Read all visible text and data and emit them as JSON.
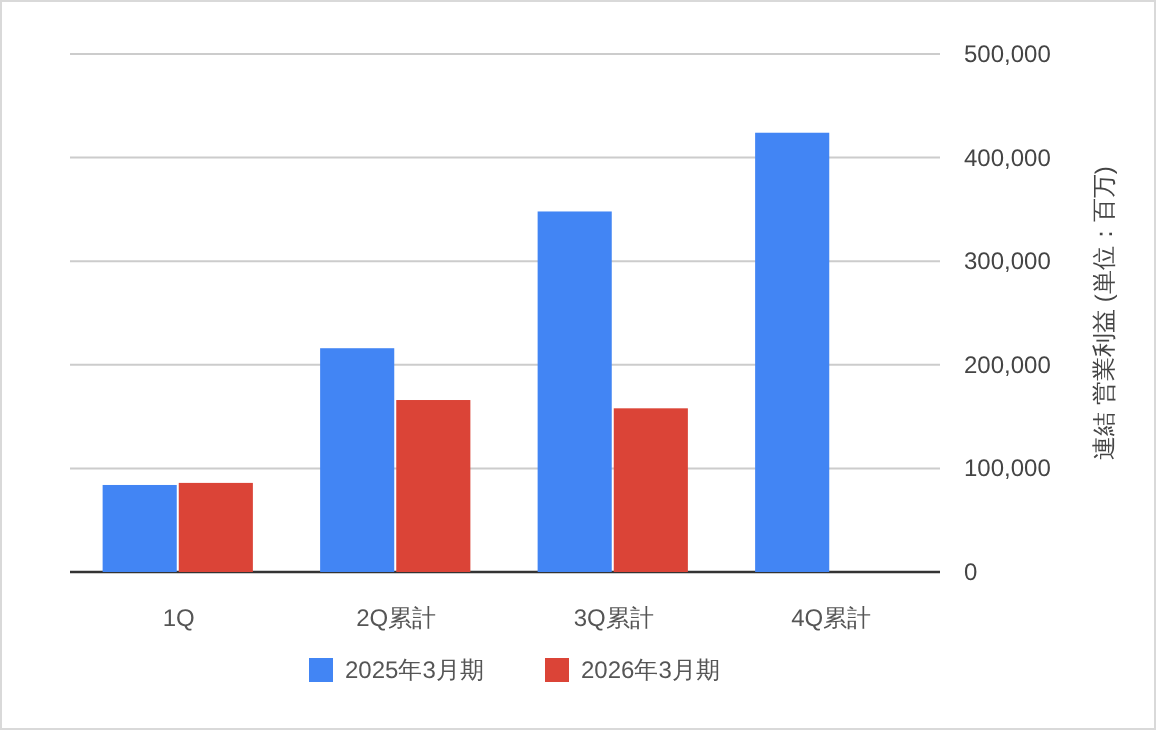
{
  "chart_data": {
    "type": "bar",
    "categories": [
      "1Q",
      "2Q累計",
      "3Q累計",
      "4Q累計"
    ],
    "series": [
      {
        "name": "2025年3月期",
        "color": "#4285f4",
        "values": [
          84000,
          216000,
          348000,
          424000
        ]
      },
      {
        "name": "2026年3月期",
        "color": "#db4437",
        "values": [
          86000,
          166000,
          158000,
          null
        ]
      }
    ],
    "ylabel": "連結 営業利益 (単位：百万)",
    "ylim": [
      0,
      500000
    ],
    "yticks": [
      {
        "value": 0,
        "label": "0"
      },
      {
        "value": 100000,
        "label": "100,000"
      },
      {
        "value": 200000,
        "label": "200,000"
      },
      {
        "value": 300000,
        "label": "300,000"
      },
      {
        "value": 400000,
        "label": "400,000"
      },
      {
        "value": 500000,
        "label": "500,000"
      }
    ],
    "grid": "y",
    "legend": "bottom"
  }
}
